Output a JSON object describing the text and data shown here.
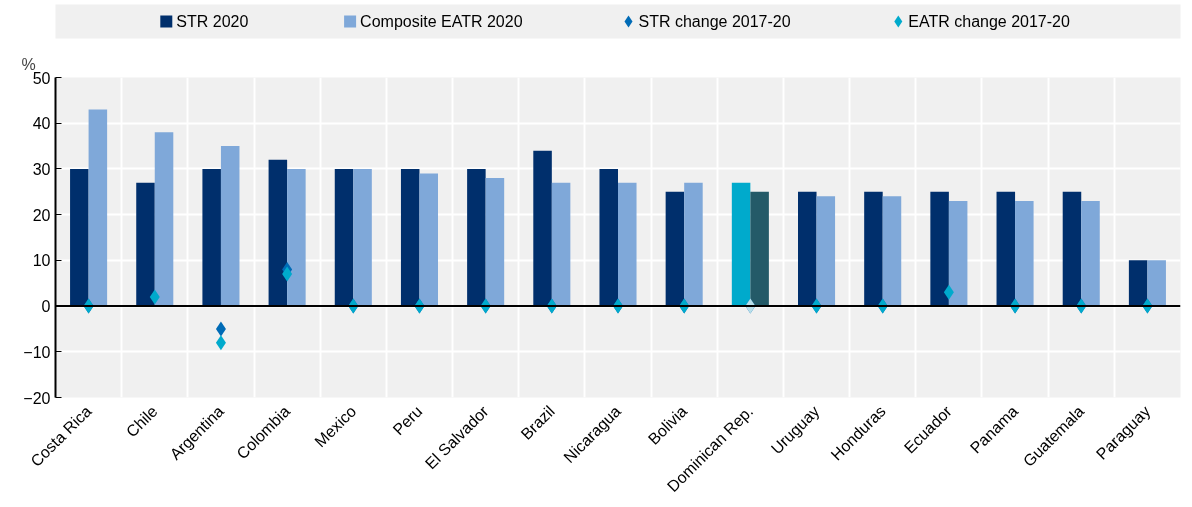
{
  "chart_data": {
    "type": "bar",
    "ylabel": "%",
    "categories": [
      "Costa Rica",
      "Chile",
      "Argentina",
      "Colombia",
      "Mexico",
      "Peru",
      "El Salvador",
      "Brazil",
      "Nicaragua",
      "Bolivia",
      "Dominican Rep.",
      "Uruguay",
      "Honduras",
      "Ecuador",
      "Panama",
      "Guatemala",
      "Paraguay"
    ],
    "series": [
      {
        "name": "STR 2020",
        "color": "#002f6c",
        "colors": [
          "#002f6c",
          "#002f6c",
          "#002f6c",
          "#002f6c",
          "#002f6c",
          "#002f6c",
          "#002f6c",
          "#002f6c",
          "#002f6c",
          "#002f6c",
          "#00aacc",
          "#002f6c",
          "#002f6c",
          "#002f6c",
          "#002f6c",
          "#002f6c",
          "#002f6c"
        ],
        "values": [
          30,
          27,
          30,
          32,
          30,
          30,
          30,
          34,
          30,
          25,
          27,
          25,
          25,
          25,
          25,
          25,
          10
        ]
      },
      {
        "name": "Composite EATR 2020",
        "color": "#7fa8d9",
        "colors": [
          "#7fa8d9",
          "#7fa8d9",
          "#7fa8d9",
          "#7fa8d9",
          "#7fa8d9",
          "#7fa8d9",
          "#7fa8d9",
          "#7fa8d9",
          "#7fa8d9",
          "#7fa8d9",
          "#245a68",
          "#7fa8d9",
          "#7fa8d9",
          "#7fa8d9",
          "#7fa8d9",
          "#7fa8d9",
          "#7fa8d9"
        ],
        "values": [
          43,
          38,
          35,
          30,
          30,
          29,
          28,
          27,
          27,
          27,
          25,
          24,
          24,
          23,
          23,
          23,
          10
        ]
      },
      {
        "name": "STR change 2017-20",
        "type": "scatter",
        "color": "#006bb6",
        "values": [
          0,
          null,
          -5,
          8,
          0,
          0,
          0,
          0,
          0,
          0,
          0,
          0,
          0,
          null,
          0,
          0,
          0
        ]
      },
      {
        "name": "EATR change 2017-20",
        "type": "scatter",
        "color": "#00aacc",
        "colors": [
          "#00aacc",
          "#00aacc",
          "#00aacc",
          "#00aacc",
          "#00aacc",
          "#00aacc",
          "#00aacc",
          "#00aacc",
          "#00aacc",
          "#00aacc",
          "#b9dfea",
          "#00aacc",
          "#00aacc",
          "#00aacc",
          "#00aacc",
          "#00aacc",
          "#00aacc"
        ],
        "values": [
          0,
          2,
          -8,
          7,
          0,
          0,
          0,
          0,
          0,
          0,
          0,
          0,
          0,
          3,
          0,
          0,
          0
        ]
      }
    ],
    "marker": "diamond",
    "ylim": [
      -20,
      50
    ],
    "yticks": [
      -20,
      -10,
      0,
      10,
      20,
      30,
      40,
      50
    ],
    "grid": true,
    "legend": "top"
  }
}
